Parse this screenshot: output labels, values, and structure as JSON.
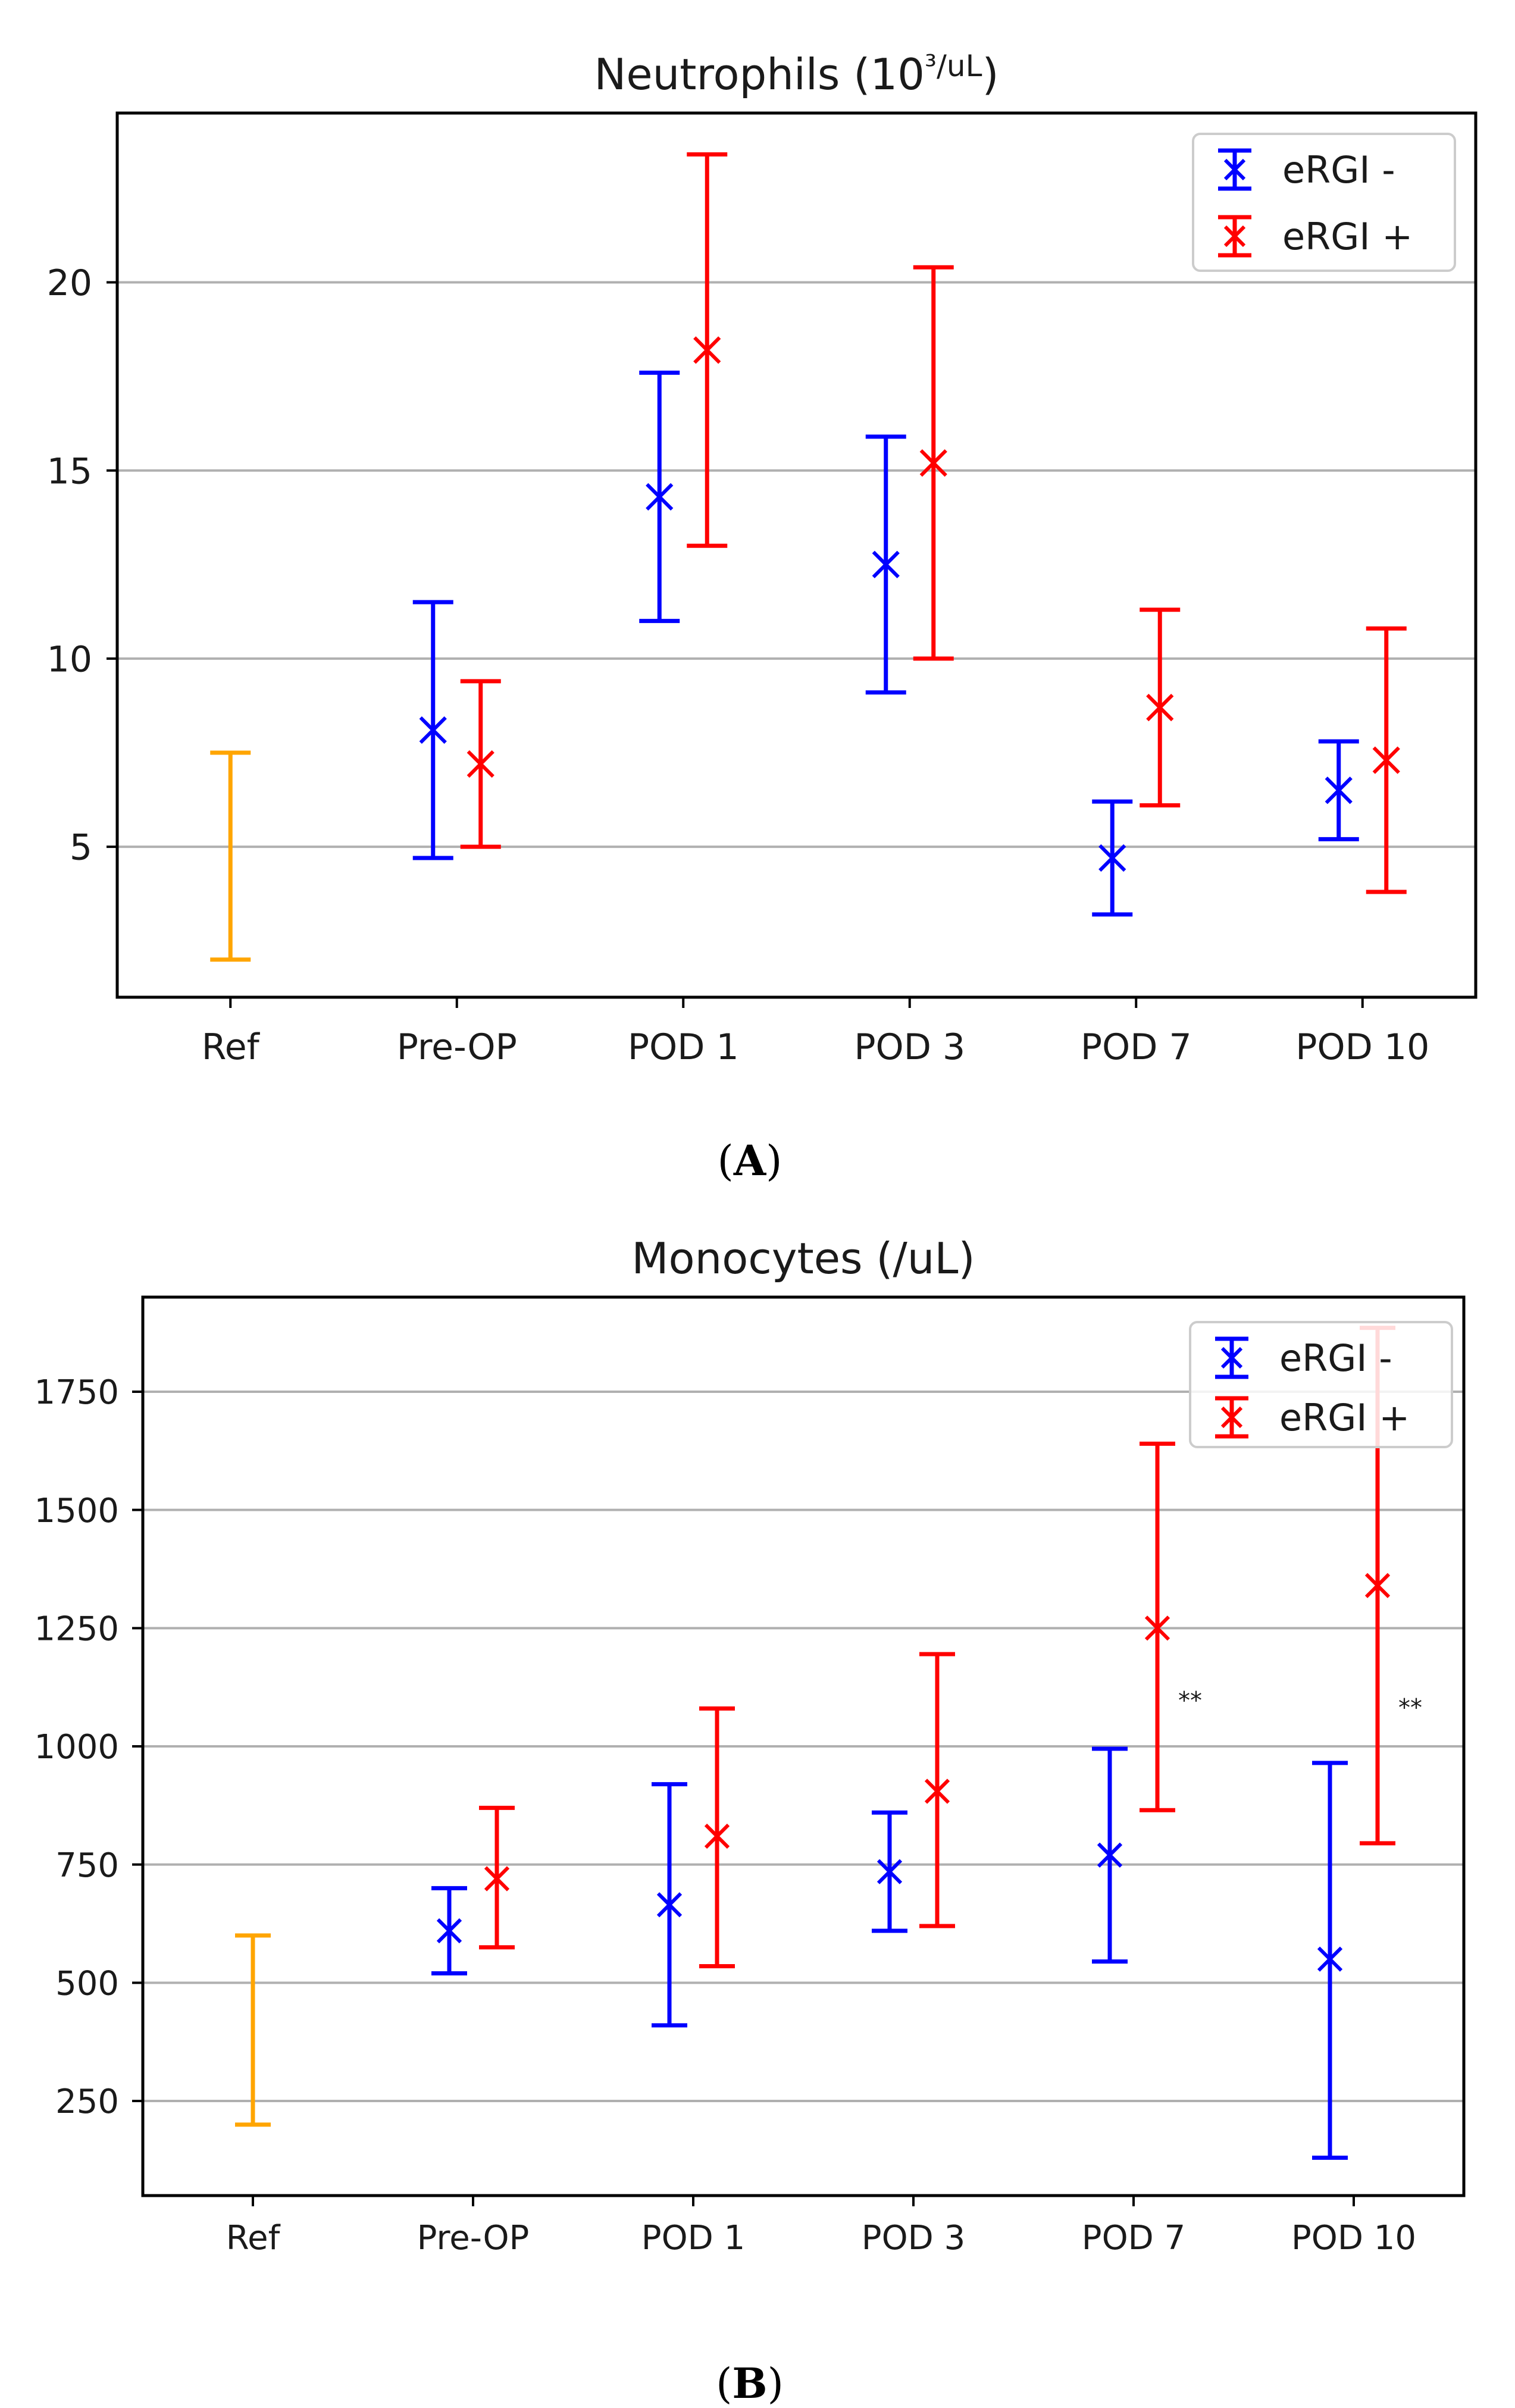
{
  "captions": {
    "open": "(",
    "close": ")",
    "a": "A",
    "b": "B"
  },
  "colors": {
    "negative": "#0000ff",
    "positive": "#ff0000",
    "reference": "#ffa500",
    "grid": "#b0b0b0",
    "axis": "#000000"
  },
  "chart_data": [
    {
      "type": "errorbar",
      "title_text": "Neutrophils (10",
      "title_sup": "³/uL",
      "title_close": ")",
      "categories": [
        "Ref",
        "Pre-OP",
        "POD 1",
        "POD 3",
        "POD 7",
        "POD 10"
      ],
      "ylim": [
        1,
        24.5
      ],
      "yticks": [
        5,
        10,
        15,
        20
      ],
      "grid": "horizontal",
      "legend_position": "top-right",
      "reference": {
        "category": "Ref",
        "low": 2.0,
        "high": 7.5
      },
      "series": [
        {
          "name": "eRGI -",
          "color": "negative",
          "offset": -1,
          "points": [
            {
              "category": "Pre-OP",
              "value": 8.1,
              "low": 4.7,
              "high": 11.5
            },
            {
              "category": "POD 1",
              "value": 14.3,
              "low": 11.0,
              "high": 17.6
            },
            {
              "category": "POD 3",
              "value": 12.5,
              "low": 9.1,
              "high": 15.9
            },
            {
              "category": "POD 7",
              "value": 4.7,
              "low": 3.2,
              "high": 6.2
            },
            {
              "category": "POD 10",
              "value": 6.5,
              "low": 5.2,
              "high": 7.8
            }
          ]
        },
        {
          "name": "eRGI +",
          "color": "positive",
          "offset": 1,
          "points": [
            {
              "category": "Pre-OP",
              "value": 7.2,
              "low": 5.0,
              "high": 9.4
            },
            {
              "category": "POD 1",
              "value": 18.2,
              "low": 13.0,
              "high": 23.4
            },
            {
              "category": "POD 3",
              "value": 15.2,
              "low": 10.0,
              "high": 20.4
            },
            {
              "category": "POD 7",
              "value": 8.7,
              "low": 6.1,
              "high": 11.3
            },
            {
              "category": "POD 10",
              "value": 7.3,
              "low": 3.8,
              "high": 10.8
            }
          ]
        }
      ],
      "annotations": []
    },
    {
      "type": "errorbar",
      "title_text": "Monocytes (/uL)",
      "title_sup": "",
      "title_close": "",
      "categories": [
        "Ref",
        "Pre-OP",
        "POD 1",
        "POD 3",
        "POD 7",
        "POD 10"
      ],
      "ylim": [
        50,
        1950
      ],
      "yticks": [
        250,
        500,
        750,
        1000,
        1250,
        1500,
        1750
      ],
      "grid": "horizontal",
      "legend_position": "top-right",
      "reference": {
        "category": "Ref",
        "low": 200,
        "high": 600
      },
      "series": [
        {
          "name": "eRGI -",
          "color": "negative",
          "offset": -1,
          "points": [
            {
              "category": "Pre-OP",
              "value": 610,
              "low": 520,
              "high": 700
            },
            {
              "category": "POD 1",
              "value": 665,
              "low": 410,
              "high": 920
            },
            {
              "category": "POD 3",
              "value": 735,
              "low": 610,
              "high": 860
            },
            {
              "category": "POD 7",
              "value": 770,
              "low": 545,
              "high": 995
            },
            {
              "category": "POD 10",
              "value": 550,
              "low": 130,
              "high": 965
            }
          ]
        },
        {
          "name": "eRGI +",
          "color": "positive",
          "offset": 1,
          "points": [
            {
              "category": "Pre-OP",
              "value": 720,
              "low": 575,
              "high": 870
            },
            {
              "category": "POD 1",
              "value": 810,
              "low": 535,
              "high": 1080
            },
            {
              "category": "POD 3",
              "value": 905,
              "low": 620,
              "high": 1195
            },
            {
              "category": "POD 7",
              "value": 1250,
              "low": 865,
              "high": 1640
            },
            {
              "category": "POD 10",
              "value": 1340,
              "low": 795,
              "high": 1885
            }
          ]
        }
      ],
      "annotations": [
        {
          "category": "POD 7",
          "value": 1080,
          "text": "**"
        },
        {
          "category": "POD 10",
          "value": 1065,
          "text": "**"
        }
      ]
    }
  ]
}
